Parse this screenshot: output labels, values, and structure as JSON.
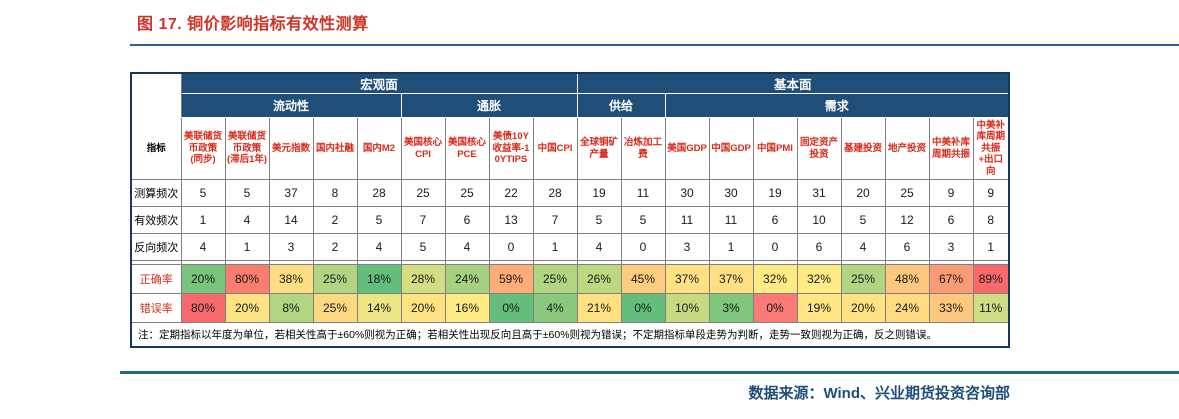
{
  "title": "图 17. 铜价影响指标有效性测算",
  "source": "数据来源：Wind、兴业期货投资咨询部",
  "colors": {
    "title_red": "#CE3426",
    "header_navy": "#1F4E79",
    "column_header_red": "#D92B1B",
    "top_rule_blue": "#2D6394",
    "bottom_rule_teal": "#1A6B7D",
    "heat_green": "#63BE7B",
    "heat_yellow": "#FFEB84",
    "heat_red": "#F8696B"
  },
  "chart_data": {
    "type": "table",
    "title": "图 17. 铜价影响指标有效性测算",
    "corner_label": "指标",
    "group_headers": [
      {
        "label": "宏观面",
        "span": 9
      },
      {
        "label": "基本面",
        "span": 10
      }
    ],
    "subgroup_headers": [
      {
        "label": "流动性",
        "span": 5
      },
      {
        "label": "通胀",
        "span": 4
      },
      {
        "label": "供给",
        "span": 2
      },
      {
        "label": "需求",
        "span": 8
      }
    ],
    "columns": [
      "美联储货币政策(同步)",
      "美联储货币政策(滞后1年)",
      "美元指数",
      "国内社融",
      "国内M2",
      "美国核心CPI",
      "美国核心PCE",
      "美债10Y收益率-10YTIPS",
      "中国CPI",
      "全球铜矿产量",
      "冶炼加工费",
      "美国GDP",
      "中国GDP",
      "中国PMI",
      "固定资产投资",
      "基建投资",
      "地产投资",
      "中美补库周期共振",
      "中美补库周期共振+出口向"
    ],
    "rows": [
      {
        "label": "测算频次",
        "values": [
          5,
          5,
          37,
          8,
          28,
          25,
          25,
          22,
          28,
          19,
          11,
          30,
          30,
          19,
          31,
          20,
          25,
          9,
          9
        ]
      },
      {
        "label": "有效频次",
        "values": [
          1,
          4,
          14,
          2,
          5,
          7,
          6,
          13,
          7,
          5,
          5,
          11,
          11,
          6,
          10,
          5,
          12,
          6,
          8
        ]
      },
      {
        "label": "反向频次",
        "values": [
          4,
          1,
          3,
          2,
          4,
          5,
          4,
          0,
          1,
          4,
          0,
          3,
          1,
          0,
          6,
          4,
          6,
          3,
          1
        ]
      }
    ],
    "heat_rows": [
      {
        "label": "正确率",
        "values": [
          "20%",
          "80%",
          "38%",
          "25%",
          "18%",
          "28%",
          "24%",
          "59%",
          "25%",
          "26%",
          "45%",
          "37%",
          "37%",
          "32%",
          "32%",
          "25%",
          "48%",
          "67%",
          "89%"
        ],
        "colors": [
          "#79C47C",
          "#F97E6F",
          "#FFDD82",
          "#B1D580",
          "#63BE7B",
          "#D2DE81",
          "#A6D17F",
          "#FCAD78",
          "#B1D580",
          "#BCD880",
          "#FDCD7F",
          "#FFE082",
          "#FFE082",
          "#FFEB84",
          "#FFEB84",
          "#B1D580",
          "#FDC77E",
          "#FB9B75",
          "#F8696B"
        ]
      },
      {
        "label": "错误率",
        "values": [
          "80%",
          "20%",
          "8%",
          "25%",
          "14%",
          "20%",
          "16%",
          "0%",
          "4%",
          "21%",
          "0%",
          "10%",
          "3%",
          "0%",
          "19%",
          "20%",
          "24%",
          "33%",
          "11%"
        ],
        "colors": [
          "#F8696B",
          "#FFE383",
          "#B1D580",
          "#FED980",
          "#ECE583",
          "#FFE383",
          "#FFEB84",
          "#63BE7B",
          "#8AC97D",
          "#FFE181",
          "#63BE7B",
          "#C5DA81",
          "#80C67D",
          "#F97A76",
          "#FFE583",
          "#FFE383",
          "#FEDB81",
          "#FDC87D",
          "#CEDD81"
        ]
      }
    ],
    "note": "注：定期指标以年度为单位，若相关性高于±60%则视为正确；若相关性出现反向且高于±60%则视为错误；不定期指标单段走势为判断，走势一致则视为正确，反之则错误。"
  }
}
